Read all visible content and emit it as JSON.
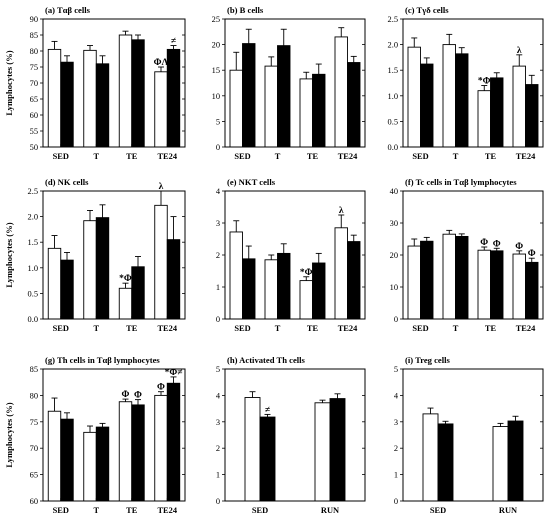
{
  "chart_data": [
    {
      "type": "bar",
      "title": "(a) Tαβ cells",
      "ylabel": "Lymphocytes (%)",
      "ylim": [
        50,
        90
      ],
      "yticks": [
        50,
        55,
        60,
        65,
        70,
        75,
        80,
        85,
        90
      ],
      "categories": [
        "SED",
        "T",
        "TE",
        "TE24"
      ],
      "series": [
        {
          "fill": "#ffffff",
          "values": [
            80.5,
            80.2,
            85,
            73.5
          ],
          "errors": [
            2.5,
            1.5,
            1.2,
            1.5
          ]
        },
        {
          "fill": "#000000",
          "values": [
            76.5,
            76,
            83.5,
            80.5
          ],
          "errors": [
            2,
            2.5,
            1.5,
            1.2
          ]
        }
      ],
      "annotations": [
        {
          "category": 3,
          "series": 0,
          "text": "ΦΛ"
        },
        {
          "category": 3,
          "series": 1,
          "text": "≠"
        }
      ]
    },
    {
      "type": "bar",
      "title": "(b) B cells",
      "ylabel": "",
      "ylim": [
        0,
        25
      ],
      "yticks": [
        0,
        5,
        10,
        15,
        20,
        25
      ],
      "categories": [
        "SED",
        "T",
        "TE",
        "TE24"
      ],
      "series": [
        {
          "fill": "#ffffff",
          "values": [
            15,
            15.8,
            13.3,
            21.5
          ],
          "errors": [
            3.5,
            1.8,
            1.3,
            1.8
          ]
        },
        {
          "fill": "#000000",
          "values": [
            20.2,
            19.8,
            14.2,
            16.5
          ],
          "errors": [
            2.8,
            3.2,
            2.0,
            1.2
          ]
        }
      ],
      "annotations": []
    },
    {
      "type": "bar",
      "title": "(c) Tγδ cells",
      "ylabel": "",
      "ylim": [
        0,
        2.5
      ],
      "yticks": [
        0.0,
        0.5,
        1.0,
        1.5,
        2.0,
        2.5
      ],
      "categories": [
        "SED",
        "T",
        "TE",
        "TE24"
      ],
      "series": [
        {
          "fill": "#ffffff",
          "values": [
            1.95,
            2.0,
            1.1,
            1.58
          ],
          "errors": [
            0.18,
            0.2,
            0.1,
            0.22
          ]
        },
        {
          "fill": "#000000",
          "values": [
            1.62,
            1.82,
            1.35,
            1.22
          ],
          "errors": [
            0.12,
            0.12,
            0.1,
            0.18
          ]
        }
      ],
      "annotations": [
        {
          "category": 2,
          "series": 0,
          "text": "*Φ"
        },
        {
          "category": 3,
          "series": 0,
          "text": "λ"
        }
      ]
    },
    {
      "type": "bar",
      "title": "(d) NK cells",
      "ylabel": "Lymphocytes (%)",
      "ylim": [
        0,
        2.5
      ],
      "yticks": [
        0.0,
        0.5,
        1.0,
        1.5,
        2.0,
        2.5
      ],
      "categories": [
        "SED",
        "T",
        "TE",
        "TE24"
      ],
      "series": [
        {
          "fill": "#ffffff",
          "values": [
            1.38,
            1.92,
            0.6,
            2.22
          ],
          "errors": [
            0.25,
            0.2,
            0.1,
            0.28
          ]
        },
        {
          "fill": "#000000",
          "values": [
            1.15,
            1.98,
            1.02,
            1.55
          ],
          "errors": [
            0.15,
            0.25,
            0.2,
            0.45
          ]
        }
      ],
      "annotations": [
        {
          "category": 2,
          "series": 0,
          "text": "*Φ"
        },
        {
          "category": 3,
          "series": 0,
          "text": "λ"
        }
      ]
    },
    {
      "type": "bar",
      "title": "(e) NKT cells",
      "ylabel": "",
      "ylim": [
        0,
        4
      ],
      "yticks": [
        0,
        1,
        2,
        3,
        4
      ],
      "categories": [
        "SED",
        "T",
        "TE",
        "TE24"
      ],
      "series": [
        {
          "fill": "#ffffff",
          "values": [
            2.72,
            1.85,
            1.2,
            2.85
          ],
          "errors": [
            0.35,
            0.15,
            0.12,
            0.4
          ]
        },
        {
          "fill": "#000000",
          "values": [
            1.88,
            2.05,
            1.75,
            2.42
          ],
          "errors": [
            0.4,
            0.3,
            0.3,
            0.2
          ]
        }
      ],
      "annotations": [
        {
          "category": 2,
          "series": 0,
          "text": "*Φ"
        },
        {
          "category": 3,
          "series": 0,
          "text": "λ"
        }
      ]
    },
    {
      "type": "bar",
      "title": "(f) Tc cells in Tαβ lymphocytes",
      "ylabel": "",
      "ylim": [
        0,
        40
      ],
      "yticks": [
        0,
        10,
        20,
        30,
        40
      ],
      "categories": [
        "SED",
        "T",
        "TE",
        "TE24"
      ],
      "series": [
        {
          "fill": "#ffffff",
          "values": [
            22.8,
            26.5,
            21.5,
            20.3
          ],
          "errors": [
            2.2,
            1.2,
            1.0,
            1.0
          ]
        },
        {
          "fill": "#000000",
          "values": [
            24.3,
            25.8,
            21.3,
            17.7
          ],
          "errors": [
            1.2,
            0.8,
            0.8,
            1.3
          ]
        }
      ],
      "annotations": [
        {
          "category": 2,
          "series": 0,
          "text": "Φ"
        },
        {
          "category": 2,
          "series": 1,
          "text": "Φ"
        },
        {
          "category": 3,
          "series": 0,
          "text": "Φ"
        },
        {
          "category": 3,
          "series": 1,
          "text": "Φ"
        }
      ]
    },
    {
      "type": "bar",
      "title": "(g) Th cells in Tαβ lymphocytes",
      "ylabel": "Lymphocytes (%)",
      "ylim": [
        60,
        85
      ],
      "yticks": [
        60,
        65,
        70,
        75,
        80,
        85
      ],
      "categories": [
        "SED",
        "T",
        "TE",
        "TE24"
      ],
      "series": [
        {
          "fill": "#ffffff",
          "values": [
            77,
            73,
            78.8,
            80
          ],
          "errors": [
            2.5,
            1.2,
            0.5,
            0.7
          ]
        },
        {
          "fill": "#000000",
          "values": [
            75.5,
            74,
            78.2,
            82.3
          ],
          "errors": [
            1.2,
            0.7,
            1.0,
            1.2
          ]
        }
      ],
      "annotations": [
        {
          "category": 2,
          "series": 0,
          "text": "Φ"
        },
        {
          "category": 2,
          "series": 1,
          "text": "Φ"
        },
        {
          "category": 3,
          "series": 0,
          "text": "Φ"
        },
        {
          "category": 3,
          "series": 1,
          "text": "*Φ≠"
        }
      ]
    },
    {
      "type": "bar",
      "title": "(h) Activated Th cells",
      "ylabel": "",
      "ylim": [
        0,
        5
      ],
      "yticks": [
        0,
        1,
        2,
        3,
        4,
        5
      ],
      "categories": [
        "SED",
        "RUN"
      ],
      "series": [
        {
          "fill": "#ffffff",
          "values": [
            3.92,
            3.72
          ],
          "errors": [
            0.22,
            0.1
          ]
        },
        {
          "fill": "#000000",
          "values": [
            3.18,
            3.88
          ],
          "errors": [
            0.1,
            0.18
          ]
        }
      ],
      "annotations": [
        {
          "category": 0,
          "series": 1,
          "text": "≠"
        }
      ]
    },
    {
      "type": "bar",
      "title": "(i) Treg cells",
      "ylabel": "",
      "ylim": [
        0,
        5
      ],
      "yticks": [
        0,
        1,
        2,
        3,
        4,
        5
      ],
      "categories": [
        "SED",
        "RUN"
      ],
      "series": [
        {
          "fill": "#ffffff",
          "values": [
            3.3,
            2.82
          ],
          "errors": [
            0.22,
            0.12
          ]
        },
        {
          "fill": "#000000",
          "values": [
            2.92,
            3.03
          ],
          "errors": [
            0.1,
            0.18
          ]
        }
      ],
      "annotations": []
    }
  ]
}
